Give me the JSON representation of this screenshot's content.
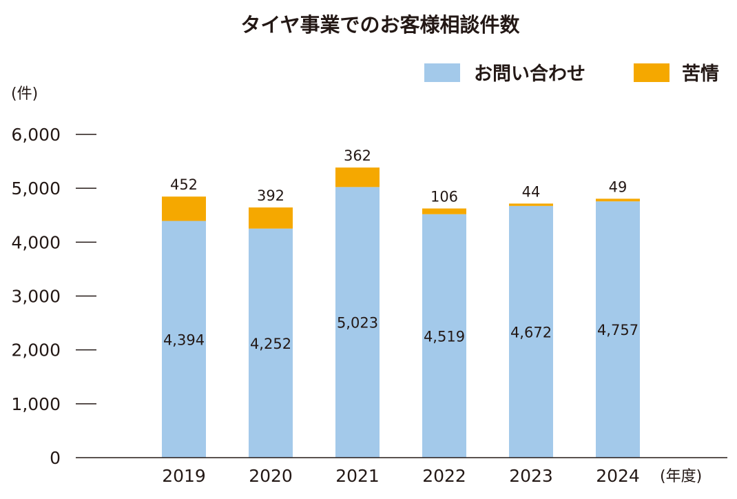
{
  "chart_data": {
    "type": "bar",
    "stacked": true,
    "title": "タイヤ事業でのお客様相談件数",
    "ylabel": "(件)",
    "xlabel": "(年度)",
    "categories": [
      "2019",
      "2020",
      "2021",
      "2022",
      "2023",
      "2024"
    ],
    "series": [
      {
        "name": "お問い合わせ",
        "values": [
          4394,
          4252,
          5023,
          4519,
          4672,
          4757
        ],
        "color": "#a3c9ea"
      },
      {
        "name": "苦情",
        "values": [
          452,
          392,
          362,
          106,
          44,
          49
        ],
        "color": "#f5a800"
      }
    ],
    "data_labels": {
      "お問い合わせ": [
        "4,394",
        "4,252",
        "5,023",
        "4,519",
        "4,672",
        "4,757"
      ],
      "苦情": [
        "452",
        "392",
        "362",
        "106",
        "44",
        "49"
      ]
    },
    "ylim": [
      0,
      6000
    ],
    "yticks": [
      0,
      1000,
      2000,
      3000,
      4000,
      5000,
      6000
    ],
    "ytick_labels": [
      "0",
      "1,000",
      "2,000",
      "3,000",
      "4,000",
      "5,000",
      "6,000"
    ],
    "grid": false,
    "legend_position": "top-right"
  }
}
